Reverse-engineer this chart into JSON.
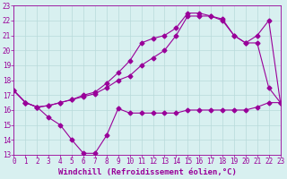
{
  "line1_x": [
    0,
    1,
    2,
    3,
    4,
    5,
    6,
    7,
    8,
    9,
    10,
    11,
    12,
    13,
    14,
    15,
    16,
    17,
    18,
    19,
    20,
    21,
    22,
    23
  ],
  "line1_y": [
    17.3,
    16.5,
    16.2,
    15.5,
    15.0,
    14.0,
    13.1,
    13.1,
    14.3,
    16.1,
    15.8,
    15.8,
    15.8,
    15.8,
    15.8,
    16.0,
    16.0,
    16.0,
    16.0,
    16.0,
    16.0,
    16.2,
    16.5,
    16.5
  ],
  "line2_x": [
    0,
    1,
    2,
    3,
    4,
    5,
    6,
    7,
    8,
    9,
    10,
    11,
    12,
    13,
    14,
    15,
    16,
    17,
    18,
    19,
    20,
    21,
    22,
    23
  ],
  "line2_y": [
    17.3,
    16.5,
    16.2,
    16.3,
    16.5,
    16.7,
    17.0,
    17.2,
    17.8,
    18.5,
    19.3,
    20.5,
    20.8,
    21.0,
    21.5,
    22.5,
    22.5,
    22.3,
    22.0,
    21.0,
    20.5,
    20.5,
    17.5,
    16.5
  ],
  "line3_x": [
    0,
    1,
    2,
    3,
    4,
    5,
    6,
    7,
    8,
    9,
    10,
    11,
    12,
    13,
    14,
    15,
    16,
    17,
    18,
    19,
    20,
    21,
    22,
    23
  ],
  "line3_y": [
    17.3,
    16.5,
    16.2,
    16.3,
    16.5,
    16.7,
    16.9,
    17.1,
    17.5,
    18.0,
    18.3,
    19.0,
    19.5,
    20.0,
    21.0,
    22.3,
    22.3,
    22.3,
    22.1,
    21.0,
    20.5,
    21.0,
    22.0,
    16.5
  ],
  "line_color": "#990099",
  "bg_color": "#d8f0f0",
  "grid_color": "#b8dada",
  "xlabel": "Windchill (Refroidissement éolien,°C)",
  "xlim": [
    0,
    23
  ],
  "ylim": [
    13,
    23
  ],
  "xticks": [
    0,
    1,
    2,
    3,
    4,
    5,
    6,
    7,
    8,
    9,
    10,
    11,
    12,
    13,
    14,
    15,
    16,
    17,
    18,
    19,
    20,
    21,
    22,
    23
  ],
  "yticks": [
    13,
    14,
    15,
    16,
    17,
    18,
    19,
    20,
    21,
    22,
    23
  ],
  "marker": "D",
  "markersize": 2.5,
  "linewidth": 0.8,
  "xlabel_fontsize": 6.5,
  "tick_fontsize": 5.5
}
